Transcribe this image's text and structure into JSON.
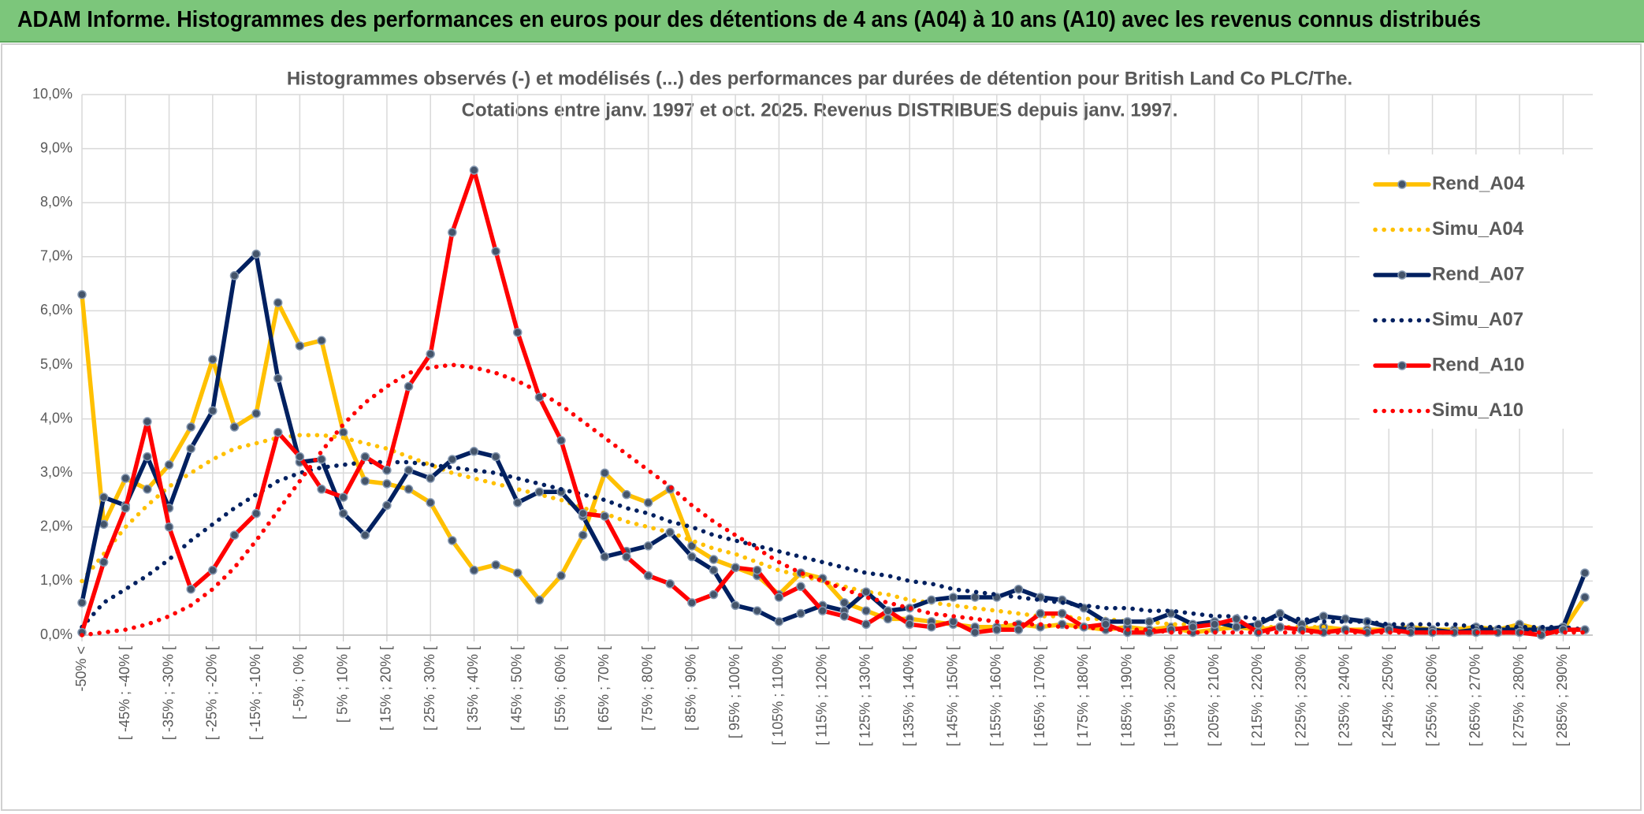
{
  "header": {
    "title": "ADAM Informe. Histogrammes des performances en euros pour des détentions de 4 ans (A04) à 10 ans (A10) avec les revenus connus distribués"
  },
  "chart_data": {
    "type": "line",
    "title": "Histogrammes observés (-) et modélisés (...) des performances par durées de détention pour British Land Co PLC/The.",
    "subtitle": "Cotations entre janv. 1997 et oct. 2025. Revenus DISTRIBUES depuis janv. 1997.",
    "categories": [
      "-50% <",
      null,
      "[ -45% ; -40% [",
      null,
      "[ -35% ; -30% [",
      null,
      "[ -25% ; -20% [",
      null,
      "[ -15% ; -10% [",
      null,
      "[ -5% ; 0% [",
      null,
      "[ 5% ; 10% [",
      null,
      "[ 15% ; 20% [",
      null,
      "[ 25% ; 30% [",
      null,
      "[ 35% ; 40% [",
      null,
      "[ 45% ; 50% [",
      null,
      "[ 55% ; 60% [",
      null,
      "[ 65% ; 70% [",
      null,
      "[ 75% ; 80% [",
      null,
      "[ 85% ; 90% [",
      null,
      "[ 95% ; 100% [",
      null,
      "[ 105% ; 110% [",
      null,
      "[ 115% ; 120% [",
      null,
      "[ 125% ; 130% [",
      null,
      "[ 135% ; 140% [",
      null,
      "[ 145% ; 150% [",
      null,
      "[ 155% ; 160% [",
      null,
      "[ 165% ; 170% [",
      null,
      "[ 175% ; 180% [",
      null,
      "[ 185% ; 190% [",
      null,
      "[ 195% ; 200% [",
      null,
      "[ 205% ; 210% [",
      null,
      "[ 215% ; 220% [",
      null,
      "[ 225% ; 230% [",
      null,
      "[ 235% ; 240% [",
      null,
      "[ 245% ; 250% [",
      null,
      "[ 255% ; 260% [",
      null,
      "[ 265% ; 270% [",
      null,
      "[ 275% ; 280% [",
      null,
      "[ 285% ; 290% [",
      null
    ],
    "series": [
      {
        "name": "Rend_A04",
        "color": "#ffc000",
        "style": "solid",
        "markers": true,
        "values": [
          6.3,
          2.05,
          2.9,
          2.7,
          3.15,
          3.85,
          5.1,
          3.85,
          4.1,
          6.15,
          5.35,
          5.45,
          3.75,
          2.85,
          2.8,
          2.7,
          2.45,
          1.75,
          1.2,
          1.3,
          1.15,
          0.65,
          1.1,
          1.85,
          3.0,
          2.6,
          2.45,
          2.7,
          1.65,
          1.4,
          1.25,
          1.1,
          0.75,
          1.15,
          1.05,
          0.6,
          0.45,
          0.3,
          0.3,
          0.25,
          0.2,
          0.15,
          0.15,
          0.2,
          0.15,
          0.2,
          0.15,
          0.1,
          0.15,
          0.1,
          0.15,
          0.05,
          0.1,
          0.15,
          0.1,
          0.15,
          0.1,
          0.15,
          0.1,
          0.1,
          0.1,
          0.15,
          0.1,
          0.1,
          0.15,
          0.1,
          0.2,
          0.1,
          0.1,
          0.7
        ]
      },
      {
        "name": "Simu_A04",
        "color": "#ffc000",
        "style": "dotted",
        "markers": false,
        "values": [
          1.0,
          1.5,
          2.0,
          2.4,
          2.75,
          3.0,
          3.25,
          3.45,
          3.55,
          3.65,
          3.7,
          3.7,
          3.65,
          3.55,
          3.45,
          3.3,
          3.15,
          3.0,
          2.9,
          2.8,
          2.7,
          2.6,
          2.5,
          2.35,
          2.25,
          2.1,
          2.0,
          1.9,
          1.75,
          1.6,
          1.5,
          1.35,
          1.2,
          1.1,
          1.0,
          0.9,
          0.8,
          0.75,
          0.65,
          0.6,
          0.55,
          0.5,
          0.45,
          0.4,
          0.35,
          0.35,
          0.3,
          0.3,
          0.25,
          0.25,
          0.2,
          0.2,
          0.2,
          0.15,
          0.15,
          0.15,
          0.15,
          0.15,
          0.1,
          0.1,
          0.1,
          0.1,
          0.1,
          0.1,
          0.1,
          0.1,
          0.1,
          0.1,
          0.1,
          0.1
        ]
      },
      {
        "name": "Rend_A07",
        "color": "#002060",
        "style": "solid",
        "markers": true,
        "values": [
          0.6,
          2.55,
          2.4,
          3.3,
          2.35,
          3.45,
          4.15,
          6.65,
          7.05,
          4.75,
          3.2,
          3.25,
          2.25,
          1.85,
          2.4,
          3.05,
          2.9,
          3.25,
          3.4,
          3.3,
          2.45,
          2.65,
          2.65,
          2.2,
          1.45,
          1.55,
          1.65,
          1.9,
          1.45,
          1.2,
          0.55,
          0.45,
          0.25,
          0.4,
          0.55,
          0.45,
          0.8,
          0.45,
          0.5,
          0.65,
          0.7,
          0.7,
          0.7,
          0.85,
          0.7,
          0.65,
          0.5,
          0.25,
          0.25,
          0.25,
          0.4,
          0.2,
          0.25,
          0.15,
          0.2,
          0.4,
          0.2,
          0.35,
          0.3,
          0.25,
          0.15,
          0.1,
          0.1,
          0.05,
          0.1,
          0.1,
          0.1,
          0.1,
          0.15,
          1.15
        ]
      },
      {
        "name": "Simu_A07",
        "color": "#002060",
        "style": "dotted",
        "markers": false,
        "values": [
          0.15,
          0.6,
          0.85,
          1.1,
          1.4,
          1.75,
          2.05,
          2.35,
          2.6,
          2.85,
          3.0,
          3.1,
          3.15,
          3.2,
          3.2,
          3.2,
          3.15,
          3.1,
          3.05,
          3.0,
          2.9,
          2.8,
          2.7,
          2.6,
          2.5,
          2.35,
          2.25,
          2.1,
          2.0,
          1.85,
          1.75,
          1.65,
          1.55,
          1.45,
          1.35,
          1.25,
          1.15,
          1.1,
          1.0,
          0.95,
          0.85,
          0.8,
          0.75,
          0.7,
          0.65,
          0.6,
          0.55,
          0.5,
          0.5,
          0.45,
          0.45,
          0.4,
          0.35,
          0.35,
          0.3,
          0.3,
          0.3,
          0.25,
          0.25,
          0.25,
          0.2,
          0.2,
          0.2,
          0.2,
          0.15,
          0.15,
          0.15,
          0.15,
          0.15,
          0.1
        ]
      },
      {
        "name": "Rend_A10",
        "color": "#ff0000",
        "style": "solid",
        "markers": true,
        "values": [
          0.05,
          1.35,
          2.35,
          3.95,
          2.0,
          0.85,
          1.2,
          1.85,
          2.25,
          3.75,
          3.3,
          2.7,
          2.55,
          3.3,
          3.05,
          4.6,
          5.2,
          7.45,
          8.6,
          7.1,
          5.6,
          4.4,
          3.6,
          2.25,
          2.2,
          1.45,
          1.1,
          0.95,
          0.6,
          0.75,
          1.25,
          1.2,
          0.7,
          0.9,
          0.45,
          0.35,
          0.2,
          0.45,
          0.2,
          0.15,
          0.25,
          0.05,
          0.1,
          0.1,
          0.4,
          0.4,
          0.15,
          0.2,
          0.05,
          0.05,
          0.1,
          0.15,
          0.2,
          0.3,
          0.05,
          0.15,
          0.1,
          0.05,
          0.1,
          0.05,
          0.1,
          0.05,
          0.05,
          0.05,
          0.05,
          0.05,
          0.05,
          0.0,
          0.1,
          0.1
        ]
      },
      {
        "name": "Simu_A10",
        "color": "#ff0000",
        "style": "dotted",
        "markers": false,
        "values": [
          0.0,
          0.05,
          0.1,
          0.2,
          0.35,
          0.55,
          0.85,
          1.25,
          1.75,
          2.3,
          2.85,
          3.4,
          3.9,
          4.3,
          4.6,
          4.85,
          4.95,
          5.0,
          4.95,
          4.85,
          4.7,
          4.5,
          4.25,
          3.95,
          3.65,
          3.35,
          3.05,
          2.75,
          2.4,
          2.1,
          1.85,
          1.6,
          1.35,
          1.15,
          1.0,
          0.85,
          0.7,
          0.6,
          0.5,
          0.4,
          0.35,
          0.3,
          0.25,
          0.2,
          0.2,
          0.15,
          0.15,
          0.1,
          0.1,
          0.1,
          0.05,
          0.05,
          0.05,
          0.05,
          0.05,
          0.05,
          0.05,
          0.05,
          0.05,
          0.05,
          0.05,
          0.05,
          0.05,
          0.05,
          0.05,
          0.05,
          0.05,
          0.05,
          0.05,
          0.05
        ]
      }
    ],
    "ylim": [
      0,
      10
    ],
    "yticks": [
      {
        "value": 0,
        "label": "0,0%"
      },
      {
        "value": 1,
        "label": "1,0%"
      },
      {
        "value": 2,
        "label": "2,0%"
      },
      {
        "value": 3,
        "label": "3,0%"
      },
      {
        "value": 4,
        "label": "4,0%"
      },
      {
        "value": 5,
        "label": "5,0%"
      },
      {
        "value": 6,
        "label": "6,0%"
      },
      {
        "value": 7,
        "label": "7,0%"
      },
      {
        "value": 8,
        "label": "8,0%"
      },
      {
        "value": 9,
        "label": "9,0%"
      },
      {
        "value": 10,
        "label": "10,0%"
      }
    ],
    "grid": true,
    "legend": "right"
  }
}
